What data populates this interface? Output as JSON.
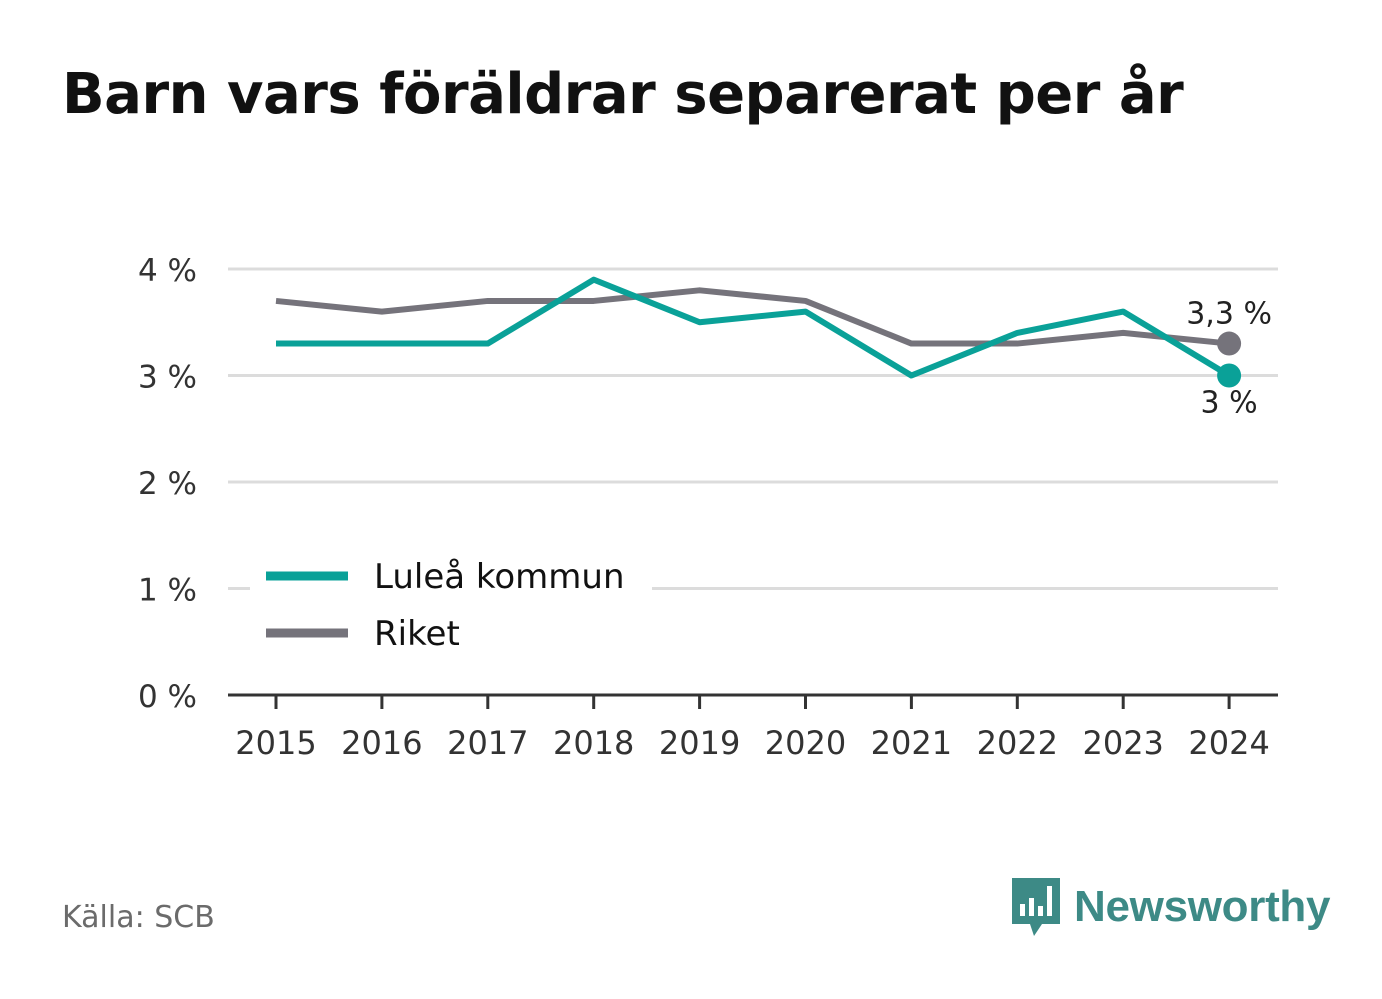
{
  "title": "Barn vars föräldrar separerat per år",
  "source": "Källa: SCB",
  "brand": "Newsworthy",
  "colors": {
    "lulea": "#0aa198",
    "riket": "#75737b",
    "grid": "#dcdcdc",
    "axis": "#333333"
  },
  "chart_data": {
    "type": "line",
    "title": "Barn vars föräldrar separerat per år",
    "x": [
      "2015",
      "2016",
      "2017",
      "2018",
      "2019",
      "2020",
      "2021",
      "2022",
      "2023",
      "2024"
    ],
    "ylim": [
      0,
      4
    ],
    "yticks": [
      0,
      1,
      2,
      3,
      4
    ],
    "ytick_labels": [
      "0 %",
      "1 %",
      "2 %",
      "3 %",
      "4 %"
    ],
    "grid": true,
    "legend_position": "bottom-left",
    "series": [
      {
        "name": "Luleå kommun",
        "color": "#0aa198",
        "values": [
          3.3,
          3.3,
          3.3,
          3.9,
          3.5,
          3.6,
          3.0,
          3.4,
          3.6,
          3.0
        ],
        "end_label": "3 %"
      },
      {
        "name": "Riket",
        "color": "#75737b",
        "values": [
          3.7,
          3.6,
          3.7,
          3.7,
          3.8,
          3.7,
          3.3,
          3.3,
          3.4,
          3.3
        ],
        "end_label": "3,3 %"
      }
    ]
  }
}
